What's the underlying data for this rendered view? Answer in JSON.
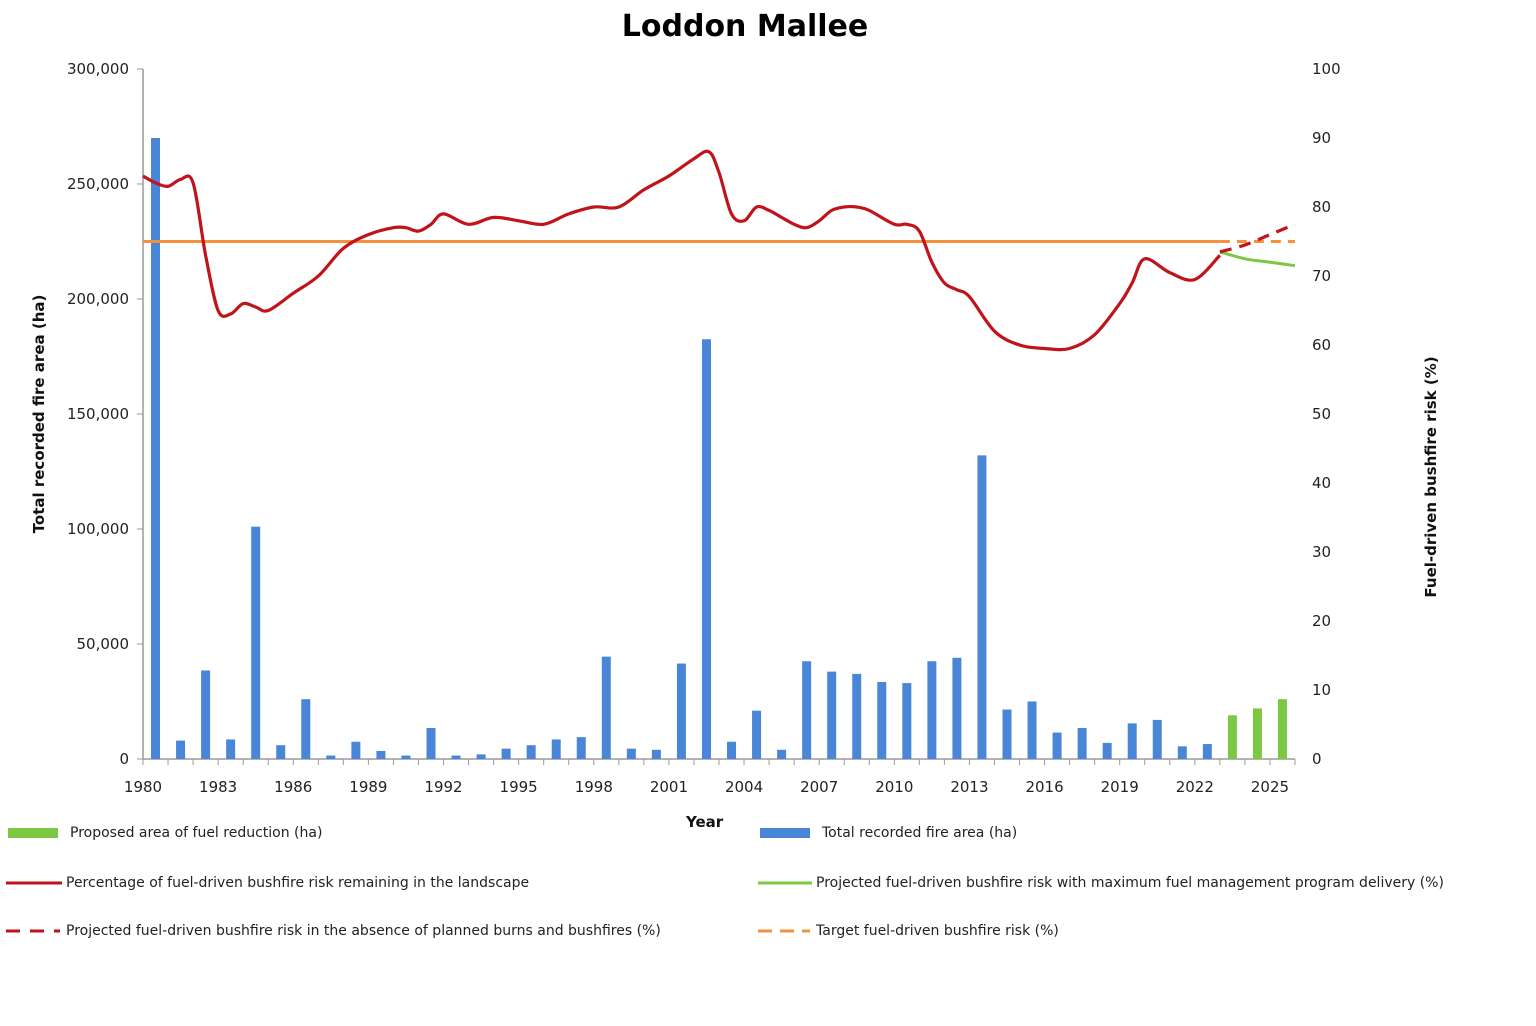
{
  "chart_data": {
    "type": "bar+line",
    "title": "Loddon Mallee",
    "xlabel": "Year",
    "ylabel_left": "Total recorded fire area (ha)",
    "ylabel_right": "Fuel-driven bushfire risk (%)",
    "ylim_left": [
      0,
      300000
    ],
    "ylim_right": [
      0,
      100
    ],
    "xlim": [
      1980,
      2026
    ],
    "left_ticks": [
      0,
      50000,
      100000,
      150000,
      200000,
      250000,
      300000
    ],
    "left_tick_labels": [
      "0",
      "50,000",
      "100,000",
      "150,000",
      "200,000",
      "250,000",
      "300,000"
    ],
    "right_ticks": [
      0,
      10,
      20,
      30,
      40,
      50,
      60,
      70,
      80,
      90,
      100
    ],
    "right_tick_labels": [
      "0",
      "10",
      "20",
      "30",
      "40",
      "50",
      "60",
      "70",
      "80",
      "90",
      "100"
    ],
    "x_ticks": [
      1980,
      1983,
      1986,
      1989,
      1992,
      1995,
      1998,
      2001,
      2004,
      2007,
      2010,
      2013,
      2016,
      2019,
      2022,
      2025
    ],
    "x_tick_labels": [
      "1980",
      "1983",
      "1986",
      "1989",
      "1992",
      "1995",
      "1998",
      "2001",
      "2004",
      "2007",
      "2010",
      "2013",
      "2016",
      "2019",
      "2022",
      "2025"
    ],
    "fire_area": {
      "name": "Total recorded fire area (ha)",
      "color": "#4a86d8",
      "years": [
        1980,
        1981,
        1982,
        1983,
        1984,
        1985,
        1986,
        1987,
        1988,
        1989,
        1990,
        1991,
        1992,
        1993,
        1994,
        1995,
        1996,
        1997,
        1998,
        1999,
        2000,
        2001,
        2002,
        2003,
        2004,
        2005,
        2006,
        2007,
        2008,
        2009,
        2010,
        2011,
        2012,
        2013,
        2014,
        2015,
        2016,
        2017,
        2018,
        2019,
        2020,
        2021,
        2022
      ],
      "values": [
        270000,
        8000,
        38500,
        8500,
        101000,
        6000,
        26000,
        1500,
        7500,
        3500,
        1500,
        13500,
        1500,
        2000,
        4500,
        6000,
        8500,
        9500,
        44500,
        4500,
        4000,
        41500,
        182500,
        7500,
        21000,
        4000,
        42500,
        38000,
        37000,
        33500,
        33000,
        42500,
        44000,
        132000,
        21500,
        25000,
        11500,
        13500,
        7000,
        15500,
        17000,
        5500,
        6500
      ]
    },
    "fuel_reduction": {
      "name": "Proposed area of fuel reduction (ha)",
      "color": "#7dc843",
      "years": [
        2023,
        2024,
        2025
      ],
      "values": [
        19000,
        22000,
        26000
      ]
    },
    "risk_remaining": {
      "name": "Percentage of fuel-driven bushfire risk remaining in the landscape",
      "color": "#c0131a",
      "x": [
        1980,
        1980.5,
        1981,
        1981.5,
        1982,
        1982.5,
        1983,
        1983.5,
        1984,
        1984.5,
        1985,
        1986,
        1987,
        1988,
        1989,
        1990,
        1990.5,
        1991,
        1991.5,
        1992,
        1993,
        1994,
        1995,
        1996,
        1997,
        1998,
        1999,
        2000,
        2001,
        2002,
        2002.6,
        2003,
        2003.5,
        2004,
        2004.5,
        2005,
        2005.5,
        2006,
        2006.5,
        2007,
        2007.5,
        2008,
        2008.5,
        2009,
        2010,
        2010.5,
        2011,
        2011.5,
        2012,
        2012.5,
        2013,
        2014,
        2015,
        2016,
        2017,
        2018,
        2019,
        2019.5,
        2020,
        2021,
        2022,
        2023
      ],
      "values": [
        84.5,
        83.5,
        83,
        84,
        83.5,
        73,
        65,
        64.5,
        66,
        65.5,
        65,
        67.5,
        70,
        74,
        76,
        77,
        77,
        76.5,
        77.5,
        79,
        77.5,
        78.5,
        78,
        77.5,
        79,
        80,
        80,
        82.5,
        84.5,
        87,
        88,
        85,
        79,
        78,
        80,
        79.5,
        78.5,
        77.5,
        77,
        78,
        79.5,
        80,
        80,
        79.5,
        77.5,
        77.5,
        76.5,
        72,
        69,
        68,
        67,
        62,
        60,
        59.5,
        59.5,
        61.5,
        66,
        69,
        72.5,
        70.5,
        69.5,
        73
      ]
    },
    "projected_max": {
      "name": "Projected fuel-driven bushfire risk with maximum fuel management program delivery  (%)",
      "color": "#7dc843",
      "x": [
        2023,
        2024,
        2025,
        2026
      ],
      "values": [
        73.5,
        72.5,
        72,
        71.5
      ]
    },
    "projected_absence": {
      "name": "Projected fuel-driven bushfire risk in the absence of planned burns and bushfires (%)",
      "color": "#c0131a",
      "x": [
        2023,
        2024,
        2025,
        2026
      ],
      "values": [
        73.5,
        74.5,
        76,
        77.5
      ]
    },
    "target": {
      "name": "Target fuel-driven bushfire risk (%)",
      "color": "#f5913c",
      "x_solid": [
        1980,
        2023
      ],
      "x_dashed": [
        2023,
        2026
      ],
      "value": 75
    }
  },
  "legend": {
    "fuel_reduction": "Proposed area of fuel reduction (ha)",
    "fire_area": "Total recorded fire area (ha)",
    "risk_remaining": "Percentage of fuel-driven bushfire risk remaining in the landscape",
    "projected_max": "Projected fuel-driven bushfire risk with maximum fuel management program delivery  (%)",
    "projected_absence": "Projected fuel-driven bushfire risk in the absence of planned burns and bushfires (%)",
    "target": "Target fuel-driven bushfire risk (%)"
  },
  "colors": {
    "fire_area": "#4a86d8",
    "fuel_reduction": "#7dc843",
    "risk_remaining": "#c0131a",
    "target": "#f5913c"
  }
}
